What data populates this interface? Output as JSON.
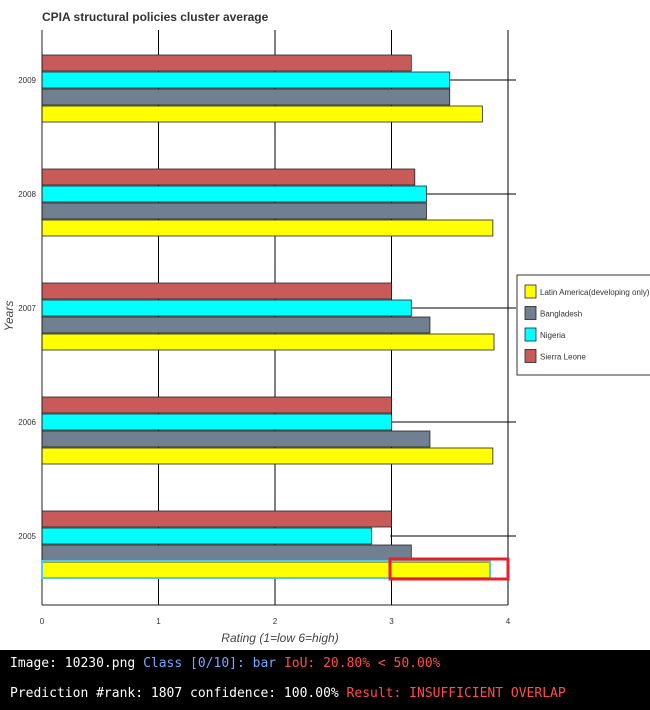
{
  "chart_data": {
    "type": "bar",
    "orientation": "horizontal",
    "title": "CPIA structural policies cluster average",
    "xlabel": "Rating (1=low 6=high)",
    "ylabel": "Years",
    "categories": [
      "2009",
      "2008",
      "2007",
      "2006",
      "2005"
    ],
    "x_ticks": [
      "0",
      "1",
      "2",
      "3",
      "4"
    ],
    "xlim": [
      0,
      4
    ],
    "series": [
      {
        "name": "Sierra Leone",
        "color": "#c85a5a",
        "values": [
          3.17,
          3.2,
          3.0,
          3.0,
          3.0
        ]
      },
      {
        "name": "Nigeria",
        "color": "#00ffff",
        "values": [
          3.5,
          3.3,
          3.17,
          3.0,
          2.83
        ]
      },
      {
        "name": "Bangladesh",
        "color": "#708090",
        "values": [
          3.5,
          3.3,
          3.33,
          3.33,
          3.17
        ]
      },
      {
        "name": "Latin America(developing only)",
        "color": "#ffff00",
        "values": [
          3.78,
          3.87,
          3.88,
          3.87,
          3.85
        ]
      }
    ],
    "legend_order": [
      "Latin America(developing only)",
      "Bangladesh",
      "Nigeria",
      "Sierra Leone"
    ],
    "legend_position": "right",
    "grid": true
  },
  "overlay": {
    "line1_prefix": "Image: 10230.png ",
    "line1_class": "Class [0/10]: bar ",
    "line1_iou": "IoU: 20.80% < 50.00%",
    "line2_prefix": "Prediction #rank: 1807 confidence: 100.00% ",
    "line2_result": "Result: INSUFFICIENT OVERLAP"
  }
}
